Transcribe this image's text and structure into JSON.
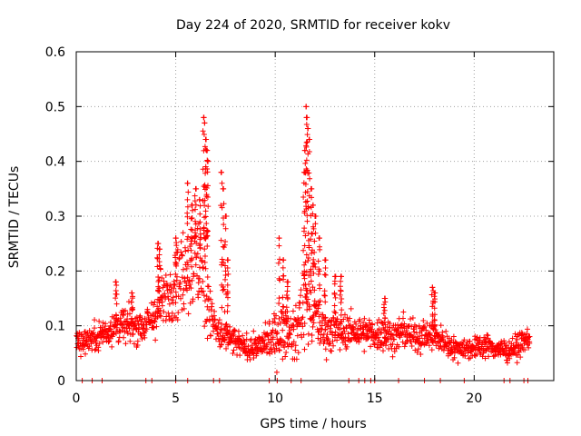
{
  "chart_data": {
    "type": "scatter",
    "title": "Day 224 of 2020, SRMTID for receiver kokv",
    "xlabel": "GPS time / hours",
    "ylabel": "SRMTID / TECUs",
    "xlim": [
      0,
      24
    ],
    "ylim": [
      0,
      0.6
    ],
    "xticks": [
      0,
      5,
      10,
      15,
      20
    ],
    "yticks": [
      0,
      0.1,
      0.2,
      0.3,
      0.4,
      0.5,
      0.6
    ],
    "xtick_labels": [
      "0",
      "5",
      "10",
      "15",
      "20"
    ],
    "ytick_labels": [
      "0",
      "0.1",
      "0.2",
      "0.3",
      "0.4",
      "0.5",
      "0.6"
    ],
    "grid": true,
    "marker": "+",
    "series": [
      {
        "name": "SRMTID",
        "color": "#ff0000",
        "profile": {
          "hours": [
            0.0,
            0.5,
            1.0,
            1.5,
            2.0,
            2.5,
            3.0,
            3.5,
            4.0,
            4.5,
            5.0,
            5.5,
            6.0,
            6.5,
            7.0,
            7.5,
            8.0,
            8.5,
            9.0,
            9.5,
            10.0,
            10.5,
            11.0,
            11.5,
            12.0,
            12.5,
            13.0,
            13.5,
            14.0,
            14.5,
            15.0,
            15.5,
            16.0,
            16.5,
            17.0,
            17.5,
            18.0,
            18.5,
            19.0,
            19.5,
            20.0,
            20.5,
            21.0,
            21.5,
            22.0,
            22.5,
            22.8
          ],
          "median": [
            0.07,
            0.075,
            0.08,
            0.09,
            0.1,
            0.1,
            0.1,
            0.1,
            0.12,
            0.15,
            0.18,
            0.2,
            0.22,
            0.18,
            0.09,
            0.08,
            0.07,
            0.06,
            0.06,
            0.07,
            0.08,
            0.09,
            0.08,
            0.15,
            0.12,
            0.09,
            0.09,
            0.09,
            0.09,
            0.085,
            0.085,
            0.085,
            0.08,
            0.09,
            0.08,
            0.085,
            0.08,
            0.07,
            0.06,
            0.06,
            0.06,
            0.065,
            0.06,
            0.055,
            0.06,
            0.07,
            0.08
          ],
          "spread": [
            0.02,
            0.02,
            0.025,
            0.03,
            0.035,
            0.03,
            0.03,
            0.03,
            0.04,
            0.05,
            0.06,
            0.08,
            0.09,
            0.09,
            0.03,
            0.03,
            0.025,
            0.02,
            0.02,
            0.03,
            0.04,
            0.05,
            0.04,
            0.09,
            0.05,
            0.04,
            0.035,
            0.03,
            0.03,
            0.03,
            0.03,
            0.03,
            0.03,
            0.03,
            0.03,
            0.03,
            0.025,
            0.02,
            0.02,
            0.02,
            0.02,
            0.02,
            0.02,
            0.02,
            0.02,
            0.02,
            0.02
          ]
        },
        "peaks": [
          [
            5.6,
            0.36
          ],
          [
            5.8,
            0.32
          ],
          [
            6.0,
            0.35
          ],
          [
            6.2,
            0.33
          ],
          [
            6.4,
            0.48
          ],
          [
            6.45,
            0.47
          ],
          [
            6.5,
            0.44
          ],
          [
            6.55,
            0.42
          ],
          [
            6.6,
            0.4
          ],
          [
            7.3,
            0.38
          ],
          [
            7.4,
            0.35
          ],
          [
            7.5,
            0.3
          ],
          [
            7.6,
            0.22
          ],
          [
            10.2,
            0.26
          ],
          [
            10.4,
            0.22
          ],
          [
            10.6,
            0.18
          ],
          [
            11.55,
            0.5
          ],
          [
            11.6,
            0.48
          ],
          [
            11.65,
            0.46
          ],
          [
            11.7,
            0.44
          ],
          [
            11.5,
            0.42
          ],
          [
            11.45,
            0.38
          ],
          [
            11.8,
            0.35
          ],
          [
            11.9,
            0.32
          ],
          [
            12.0,
            0.3
          ],
          [
            12.2,
            0.26
          ],
          [
            12.5,
            0.22
          ],
          [
            13.0,
            0.19
          ],
          [
            13.3,
            0.19
          ],
          [
            4.1,
            0.25
          ],
          [
            4.2,
            0.24
          ],
          [
            5.0,
            0.26
          ],
          [
            2.0,
            0.18
          ],
          [
            2.8,
            0.16
          ],
          [
            15.5,
            0.15
          ],
          [
            17.9,
            0.17
          ],
          [
            18.0,
            0.16
          ]
        ],
        "zero_hours": [
          0.3,
          0.8,
          1.3,
          3.5,
          3.8,
          5.0,
          5.6,
          6.9,
          7.2,
          9.7,
          10.1,
          10.8,
          11.3,
          13.7,
          14.2,
          14.5,
          14.8,
          15.0,
          16.2,
          17.5,
          18.3,
          19.5,
          21.5,
          21.8,
          22.5,
          22.7
        ]
      }
    ]
  }
}
